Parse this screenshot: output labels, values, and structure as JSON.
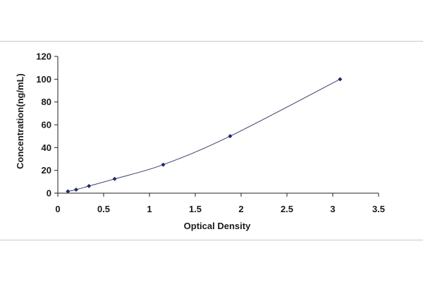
{
  "chart_data": {
    "type": "scatter",
    "title": "",
    "xlabel": "Optical Density",
    "ylabel": "Concentration(ng/mL)",
    "xlim": [
      0,
      3.5
    ],
    "ylim": [
      0,
      120
    ],
    "x_ticks": [
      "0",
      "0.5",
      "1",
      "1.5",
      "2",
      "2.5",
      "3",
      "3.5"
    ],
    "y_ticks": [
      "0",
      "20",
      "40",
      "60",
      "80",
      "100",
      "120"
    ],
    "grid": false,
    "legend": "none",
    "series": [
      {
        "x": [
          0.11,
          0.2,
          0.34,
          0.62,
          1.15,
          1.88,
          3.08
        ],
        "y": [
          1.56,
          3.12,
          6.25,
          12.5,
          25,
          50,
          100
        ],
        "marker_color": "#1f2a6b",
        "line_color": "#3d3d6b",
        "trendline": "smooth"
      }
    ]
  }
}
